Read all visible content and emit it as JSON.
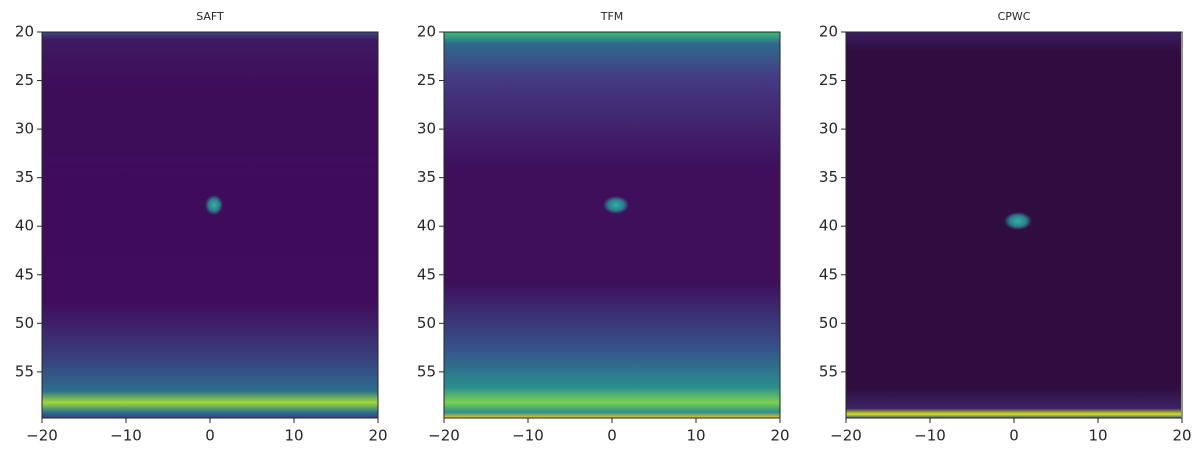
{
  "chart_data": [
    {
      "type": "heatmap",
      "title": "SAFT",
      "xlim": [
        -20,
        20
      ],
      "ylim": [
        59.75,
        20
      ],
      "xticks": [
        {
          "value": -20,
          "label": "−20"
        },
        {
          "value": -10,
          "label": "−10"
        },
        0,
        10,
        20
      ],
      "yticks": [
        20,
        25,
        30,
        35,
        40,
        45,
        50,
        55
      ]
    },
    {
      "type": "heatmap",
      "title": "TFM",
      "xlim": [
        -20,
        20
      ],
      "ylim": [
        59.75,
        20
      ],
      "xticks": [
        {
          "value": -20,
          "label": "−20"
        },
        {
          "value": -10,
          "label": "−10"
        },
        0,
        10,
        20
      ],
      "yticks": [
        20,
        25,
        30,
        35,
        40,
        45,
        50,
        55
      ]
    },
    {
      "type": "heatmap",
      "title": "CPWC",
      "xlim": [
        -20,
        20
      ],
      "ylim": [
        59.75,
        20
      ],
      "xticks": [
        {
          "value": -20,
          "label": "−20"
        },
        {
          "value": -10,
          "label": "−10"
        },
        0,
        10,
        20
      ],
      "yticks": [
        20,
        25,
        30,
        35,
        40,
        45,
        50,
        55
      ]
    }
  ]
}
